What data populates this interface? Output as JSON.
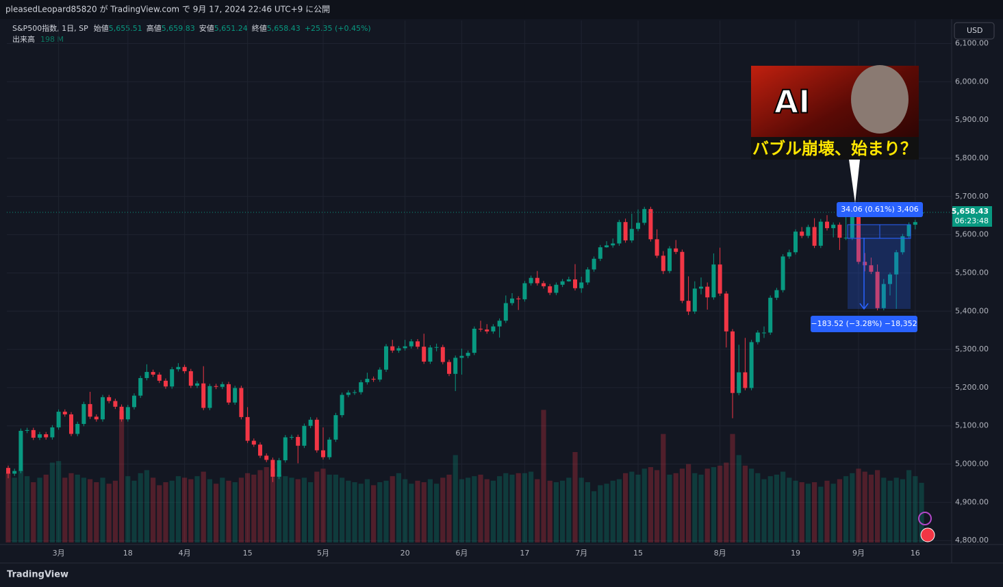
{
  "header": "pleasedLeopard85820 が TradingView.com で 9月 17, 2024 22:46 UTC+9 に公開",
  "footer": "TradingView",
  "currency": "USD",
  "chart_data": {
    "type": "candlestick",
    "symbol": "S&P500指数, 1日, SP",
    "ohlc_legend": [
      {
        "label": "始値",
        "value": "5,655.51"
      },
      {
        "label": "高値",
        "value": "5,659.83"
      },
      {
        "label": "安値",
        "value": "5,651.24"
      },
      {
        "label": "終値",
        "value": "5,658.43"
      }
    ],
    "change": "+25.35 (+0.45%)",
    "volume_title": "出来高",
    "volume_label": "198 M",
    "price_label": "5,658.43",
    "countdown": "06:23:48",
    "annotations": [
      "34.06 (0.61%) 3,406",
      "−183.52 (−3.28%) −18,352"
    ],
    "thumbnail": {
      "title": "AI",
      "caption": "バブル崩壊、始まり？"
    },
    "up_color": "#089981",
    "down_color": "#f23645",
    "ylim": [
      4795,
      6160
    ],
    "yticks": [
      {
        "value": 4800,
        "label": "4,800.00"
      },
      {
        "value": 4900,
        "label": "4,900.00"
      },
      {
        "value": 5000,
        "label": "5,000.00"
      },
      {
        "value": 5100,
        "label": "5,100.00"
      },
      {
        "value": 5200,
        "label": "5,200.00"
      },
      {
        "value": 5300,
        "label": "5,300.00"
      },
      {
        "value": 5400,
        "label": "5,400.00"
      },
      {
        "value": 5500,
        "label": "5,500.00"
      },
      {
        "value": 5600,
        "label": "5,600.00"
      },
      {
        "value": 5700,
        "label": "5,700.00"
      },
      {
        "value": 5800,
        "label": "5,800.00"
      },
      {
        "value": 5900,
        "label": "5,900.00"
      },
      {
        "value": 6000,
        "label": "6,000.00"
      },
      {
        "value": 6100,
        "label": "6,100.00"
      }
    ],
    "grid": true,
    "categories": [
      null,
      null,
      null,
      null,
      null,
      null,
      null,
      null,
      "3月",
      null,
      null,
      null,
      null,
      null,
      null,
      null,
      null,
      null,
      null,
      "18",
      null,
      null,
      null,
      null,
      null,
      null,
      null,
      null,
      "4月",
      null,
      null,
      null,
      null,
      null,
      null,
      null,
      null,
      null,
      "15",
      null,
      null,
      null,
      null,
      null,
      null,
      null,
      null,
      null,
      null,
      null,
      "5月",
      null,
      null,
      null,
      null,
      null,
      null,
      null,
      null,
      null,
      null,
      null,
      null,
      "20",
      null,
      null,
      null,
      null,
      null,
      null,
      null,
      null,
      "6月",
      null,
      null,
      null,
      null,
      null,
      null,
      null,
      null,
      null,
      "17",
      null,
      null,
      null,
      null,
      null,
      null,
      null,
      null,
      "7月",
      null,
      null,
      null,
      null,
      null,
      null,
      null,
      null,
      "15",
      null,
      null,
      null,
      null,
      null,
      null,
      null,
      null,
      null,
      null,
      null,
      null,
      "8月",
      null,
      null,
      null,
      null,
      null,
      null,
      null,
      null,
      null,
      null,
      null,
      "19",
      null,
      null,
      null,
      null,
      null,
      null,
      null,
      null,
      null,
      "9月",
      null,
      null,
      null,
      null,
      null,
      null,
      null,
      null,
      "16",
      null
    ],
    "open": [
      4990,
      4975,
      4982,
      5087,
      5089,
      5069,
      5078,
      5070,
      5096,
      5137,
      5130,
      5079,
      5105,
      5157,
      5124,
      5117,
      5175,
      5165,
      5150,
      5117,
      5149,
      5179,
      5225,
      5241,
      5234,
      5218,
      5203,
      5248,
      5254,
      5243,
      5205,
      5211,
      5147,
      5204,
      5202,
      5209,
      5161,
      5199,
      5123,
      5061,
      5051,
      5022,
      5011,
      4967,
      5010,
      5070,
      5071,
      5048,
      5100,
      5116,
      5036,
      5018,
      5064,
      5128,
      5181,
      5187,
      5188,
      5214,
      5223,
      5221,
      5247,
      5308,
      5297,
      5303,
      5308,
      5321,
      5307,
      5268,
      5305,
      5306,
      5267,
      5236,
      5278,
      5283,
      5291,
      5354,
      5352,
      5347,
      5360,
      5375,
      5421,
      5433,
      5431,
      5473,
      5487,
      5473,
      5465,
      5448,
      5469,
      5478,
      5483,
      5460,
      5475,
      5509,
      5537,
      5567,
      5572,
      5577,
      5633,
      5585,
      5615,
      5631,
      5667,
      5588,
      5545,
      5505,
      5564,
      5555,
      5427,
      5399,
      5459,
      5464,
      5436,
      5522,
      5446,
      5347,
      5186,
      5240,
      5199,
      5319,
      5344,
      5344,
      5435,
      5455,
      5543,
      5554,
      5608,
      5597,
      5620,
      5571,
      5634,
      5617,
      5626,
      5592,
      5592,
      5648,
      5529,
      5520,
      5503,
      5408,
      5471,
      5496,
      5554,
      5596,
      5626,
      5655.51
    ],
    "high": [
      4996,
      4988,
      5093,
      5095,
      5095,
      5084,
      5084,
      5102,
      5143,
      5143,
      5136,
      5111,
      5163,
      5189,
      5130,
      5181,
      5181,
      5171,
      5156,
      5155,
      5185,
      5231,
      5261,
      5247,
      5240,
      5224,
      5254,
      5264,
      5260,
      5249,
      5217,
      5256,
      5210,
      5210,
      5215,
      5215,
      5205,
      5205,
      5149,
      5067,
      5057,
      5028,
      5017,
      5016,
      5076,
      5077,
      5077,
      5106,
      5123,
      5122,
      5096,
      5070,
      5134,
      5187,
      5193,
      5194,
      5220,
      5239,
      5229,
      5253,
      5314,
      5325,
      5309,
      5325,
      5327,
      5327,
      5341,
      5311,
      5315,
      5312,
      5273,
      5284,
      5302,
      5297,
      5360,
      5375,
      5366,
      5366,
      5381,
      5441,
      5447,
      5439,
      5479,
      5493,
      5505,
      5479,
      5471,
      5475,
      5484,
      5490,
      5523,
      5490,
      5515,
      5543,
      5573,
      5583,
      5590,
      5639,
      5642,
      5655,
      5666,
      5673,
      5673,
      5614,
      5557,
      5570,
      5586,
      5561,
      5491,
      5478,
      5488,
      5475,
      5551,
      5566,
      5452,
      5353,
      5312,
      5330,
      5325,
      5350,
      5360,
      5441,
      5461,
      5549,
      5561,
      5614,
      5620,
      5626,
      5643,
      5641,
      5651,
      5632,
      5632,
      5646,
      5654,
      5651,
      5552,
      5540,
      5522,
      5484,
      5501,
      5560,
      5602,
      5632,
      5639,
      5659.83
    ],
    "low": [
      4963,
      4969,
      4976,
      5081,
      5063,
      5063,
      5064,
      5064,
      5090,
      5124,
      5073,
      5073,
      5099,
      5118,
      5111,
      5111,
      5159,
      5144,
      5111,
      5111,
      5143,
      5173,
      5219,
      5228,
      5212,
      5197,
      5197,
      5242,
      5237,
      5199,
      5199,
      5141,
      5141,
      5196,
      5196,
      5155,
      5155,
      5117,
      5055,
      5045,
      5016,
      5005,
      4953,
      4961,
      5004,
      5064,
      5002,
      5042,
      5094,
      5030,
      5012,
      5012,
      5058,
      5122,
      5175,
      5181,
      5182,
      5208,
      5215,
      5215,
      5241,
      5291,
      5291,
      5297,
      5302,
      5301,
      5262,
      5262,
      5295,
      5261,
      5230,
      5191,
      5234,
      5277,
      5285,
      5346,
      5341,
      5341,
      5331,
      5369,
      5415,
      5403,
      5425,
      5467,
      5467,
      5459,
      5442,
      5442,
      5463,
      5477,
      5454,
      5448,
      5469,
      5503,
      5531,
      5566,
      5566,
      5571,
      5579,
      5579,
      5609,
      5625,
      5582,
      5539,
      5497,
      5499,
      5549,
      5421,
      5390,
      5393,
      5444,
      5404,
      5430,
      5440,
      5305,
      5120,
      5180,
      5193,
      5193,
      5313,
      5330,
      5338,
      5429,
      5449,
      5537,
      5548,
      5591,
      5591,
      5565,
      5565,
      5611,
      5593,
      5560,
      5586,
      5586,
      5523,
      5504,
      5497,
      5402,
      5402,
      5441,
      5406,
      5548,
      5590,
      5614,
      5651.24
    ],
    "close": [
      4975,
      4982,
      5087,
      5089,
      5069,
      5078,
      5070,
      5096,
      5137,
      5130,
      5079,
      5105,
      5157,
      5124,
      5117,
      5175,
      5165,
      5150,
      5117,
      5149,
      5179,
      5225,
      5241,
      5234,
      5218,
      5203,
      5248,
      5254,
      5243,
      5205,
      5211,
      5147,
      5204,
      5202,
      5209,
      5161,
      5199,
      5123,
      5061,
      5051,
      5022,
      5011,
      4967,
      5010,
      5070,
      5071,
      5048,
      5100,
      5116,
      5036,
      5018,
      5064,
      5128,
      5181,
      5187,
      5188,
      5214,
      5223,
      5221,
      5247,
      5308,
      5297,
      5303,
      5308,
      5321,
      5307,
      5268,
      5305,
      5306,
      5267,
      5236,
      5278,
      5283,
      5291,
      5354,
      5352,
      5347,
      5360,
      5375,
      5421,
      5433,
      5431,
      5473,
      5487,
      5473,
      5465,
      5448,
      5469,
      5478,
      5483,
      5460,
      5475,
      5509,
      5537,
      5567,
      5572,
      5577,
      5633,
      5585,
      5615,
      5631,
      5667,
      5588,
      5545,
      5505,
      5564,
      5555,
      5427,
      5399,
      5459,
      5464,
      5436,
      5522,
      5446,
      5347,
      5186,
      5240,
      5199,
      5319,
      5344,
      5344,
      5435,
      5455,
      5543,
      5554,
      5608,
      5597,
      5620,
      5571,
      5634,
      5617,
      5626,
      5592,
      5592,
      5648,
      5529,
      5520,
      5503,
      5408,
      5471,
      5496,
      5554,
      5596,
      5626,
      5633,
      5658.43
    ],
    "volume": [
      230,
      215,
      240,
      220,
      200,
      215,
      225,
      265,
      270,
      215,
      230,
      225,
      215,
      210,
      200,
      215,
      195,
      205,
      436,
      220,
      205,
      230,
      240,
      215,
      190,
      200,
      205,
      220,
      215,
      210,
      220,
      235,
      210,
      195,
      215,
      205,
      200,
      215,
      230,
      225,
      240,
      250,
      245,
      225,
      220,
      215,
      210,
      215,
      200,
      235,
      245,
      225,
      225,
      215,
      205,
      200,
      195,
      210,
      190,
      200,
      205,
      220,
      230,
      210,
      195,
      205,
      200,
      210,
      195,
      215,
      225,
      290,
      210,
      215,
      220,
      225,
      210,
      205,
      220,
      230,
      225,
      230,
      230,
      235,
      210,
      440,
      205,
      200,
      205,
      215,
      300,
      215,
      200,
      170,
      190,
      195,
      205,
      210,
      230,
      235,
      225,
      245,
      250,
      240,
      360,
      225,
      230,
      245,
      260,
      230,
      225,
      245,
      250,
      255,
      265,
      360,
      290,
      255,
      245,
      230,
      210,
      220,
      225,
      235,
      215,
      205,
      200,
      195,
      200,
      185,
      205,
      195,
      210,
      220,
      230,
      245,
      235,
      225,
      240,
      215,
      205,
      215,
      210,
      240,
      220,
      198
    ]
  }
}
